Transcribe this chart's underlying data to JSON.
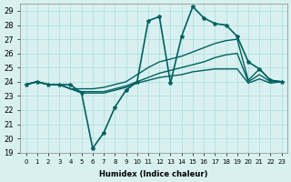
{
  "xlabel": "Humidex (Indice chaleur)",
  "background_color": "#d9f0f0",
  "grid_color": "#aadddd",
  "line_color": "#006060",
  "xlim": [
    -0.5,
    23.5
  ],
  "ylim": [
    19,
    29.5
  ],
  "yticks": [
    19,
    20,
    21,
    22,
    23,
    24,
    25,
    26,
    27,
    28,
    29
  ],
  "xticks": [
    0,
    1,
    2,
    3,
    4,
    5,
    6,
    7,
    8,
    9,
    10,
    11,
    12,
    13,
    14,
    15,
    16,
    17,
    18,
    19,
    20,
    21,
    22,
    23
  ],
  "series": [
    {
      "x": [
        0,
        1,
        2,
        3,
        4,
        5,
        6,
        7,
        8,
        9,
        10,
        11,
        12,
        13,
        14,
        15,
        16,
        17,
        18,
        19,
        20,
        21,
        22,
        23
      ],
      "y": [
        23.8,
        24.0,
        23.8,
        23.8,
        23.8,
        23.2,
        19.3,
        20.4,
        22.2,
        23.4,
        24.0,
        28.3,
        28.6,
        23.9,
        27.2,
        29.3,
        28.5,
        28.1,
        28.0,
        27.2,
        25.4,
        24.9,
        24.1,
        24.0
      ],
      "marker": "*",
      "linestyle": "-",
      "linewidth": 1.2
    },
    {
      "x": [
        0,
        1,
        2,
        3,
        4,
        5,
        6,
        7,
        8,
        9,
        10,
        11,
        12,
        13,
        14,
        15,
        16,
        17,
        18,
        19,
        20,
        21,
        22,
        23
      ],
      "y": [
        23.8,
        24.0,
        23.8,
        23.8,
        23.5,
        23.5,
        23.5,
        23.6,
        23.8,
        24.0,
        24.5,
        25.0,
        25.4,
        25.6,
        25.8,
        26.1,
        26.4,
        26.7,
        26.9,
        27.0,
        24.1,
        24.9,
        24.1,
        24.0
      ],
      "marker": null,
      "linestyle": "-",
      "linewidth": 1.0
    },
    {
      "x": [
        0,
        1,
        2,
        3,
        4,
        5,
        6,
        7,
        8,
        9,
        10,
        11,
        12,
        13,
        14,
        15,
        16,
        17,
        18,
        19,
        20,
        21,
        22,
        23
      ],
      "y": [
        23.8,
        24.0,
        23.8,
        23.8,
        23.5,
        23.3,
        23.3,
        23.3,
        23.5,
        23.7,
        24.0,
        24.3,
        24.6,
        24.8,
        25.0,
        25.2,
        25.4,
        25.7,
        25.9,
        26.0,
        24.0,
        24.5,
        24.0,
        24.0
      ],
      "marker": null,
      "linestyle": "-",
      "linewidth": 1.0
    },
    {
      "x": [
        0,
        1,
        2,
        3,
        4,
        5,
        6,
        7,
        8,
        9,
        10,
        11,
        12,
        13,
        14,
        15,
        16,
        17,
        18,
        19,
        20,
        21,
        22,
        23
      ],
      "y": [
        23.8,
        24.0,
        23.8,
        23.8,
        23.5,
        23.2,
        23.2,
        23.2,
        23.4,
        23.6,
        23.9,
        24.1,
        24.3,
        24.4,
        24.5,
        24.7,
        24.8,
        24.9,
        24.9,
        24.9,
        23.9,
        24.2,
        23.9,
        24.0
      ],
      "marker": null,
      "linestyle": "-",
      "linewidth": 1.0
    }
  ]
}
